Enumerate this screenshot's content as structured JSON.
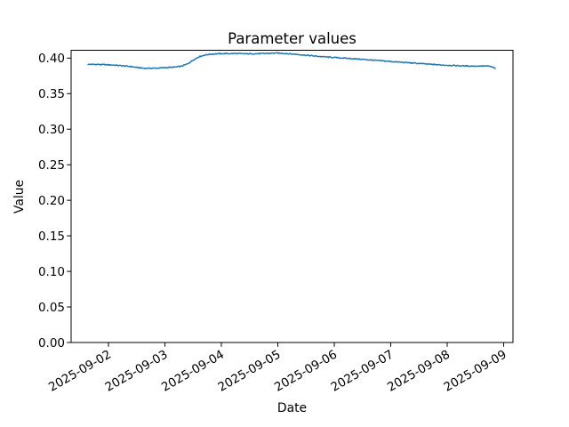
{
  "window": {
    "background_color": "#ffffff"
  },
  "chart_data": {
    "type": "line",
    "title": "Parameter values",
    "xlabel": "Date",
    "ylabel": "Value",
    "grid": false,
    "legend_position": "none",
    "line_color": "#1f77b4",
    "axis_color": "#000000",
    "background": "#ffffff",
    "x_ticklabels": [
      "2025-09-02",
      "2025-09-03",
      "2025-09-04",
      "2025-09-05",
      "2025-09-06",
      "2025-09-07",
      "2025-09-08",
      "2025-09-09"
    ],
    "x_tick_days": [
      2,
      3,
      4,
      5,
      6,
      7,
      8,
      9
    ],
    "x_ticklabel_rotation_deg": 30,
    "y_ticklabels": [
      "0.00",
      "0.05",
      "0.10",
      "0.15",
      "0.20",
      "0.25",
      "0.30",
      "0.35",
      "0.40"
    ],
    "y_tick_values": [
      0.0,
      0.05,
      0.1,
      0.15,
      0.2,
      0.25,
      0.3,
      0.35,
      0.4
    ],
    "xlim_days": [
      1.339,
      9.165
    ],
    "ylim": [
      0.0,
      0.411
    ],
    "noise_amplitude": 0.0007,
    "series": [
      {
        "name": "parameter",
        "x_days": [
          1.64,
          1.8,
          1.95,
          2.1,
          2.25,
          2.4,
          2.52,
          2.63,
          2.75,
          2.85,
          2.95,
          3.08,
          3.2,
          3.3,
          3.4,
          3.5,
          3.6,
          3.7,
          3.8,
          3.92,
          4.05,
          4.25,
          4.45,
          4.65,
          4.85,
          5.0,
          5.15,
          5.3,
          5.5,
          5.7,
          5.9,
          6.1,
          6.3,
          6.5,
          6.7,
          6.9,
          7.1,
          7.3,
          7.5,
          7.7,
          7.9,
          8.1,
          8.3,
          8.5,
          8.65,
          8.75,
          8.82,
          8.85
        ],
        "y": [
          0.3912,
          0.3911,
          0.3907,
          0.3901,
          0.3892,
          0.388,
          0.3866,
          0.3857,
          0.3856,
          0.3858,
          0.3863,
          0.3869,
          0.3874,
          0.3888,
          0.3918,
          0.3972,
          0.4018,
          0.4042,
          0.4054,
          0.406,
          0.4063,
          0.4064,
          0.406,
          0.4062,
          0.4067,
          0.407,
          0.4064,
          0.4055,
          0.404,
          0.4025,
          0.4013,
          0.4003,
          0.3993,
          0.3982,
          0.397,
          0.3958,
          0.3946,
          0.3935,
          0.3924,
          0.3913,
          0.3903,
          0.3896,
          0.389,
          0.3887,
          0.3889,
          0.3886,
          0.3866,
          0.3857
        ]
      }
    ]
  }
}
